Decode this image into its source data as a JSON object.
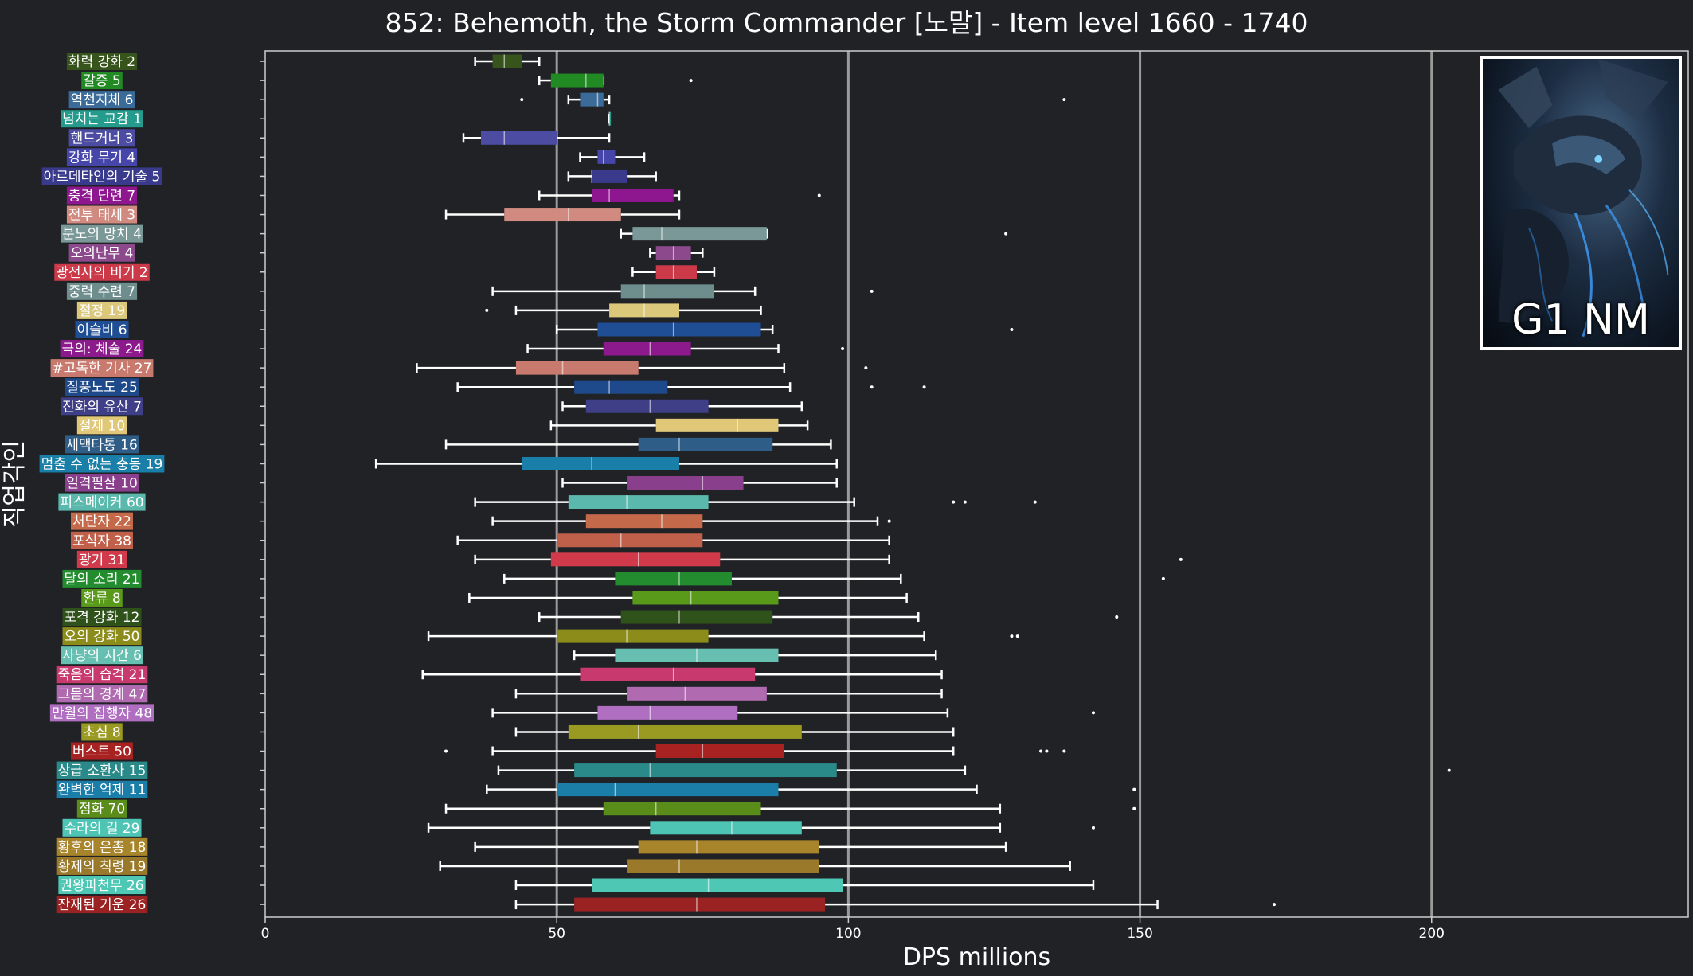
{
  "chart_data": {
    "type": "box",
    "title": "852: Behemoth, the Storm Commander [노말] - Item level 1660 - 1740",
    "xlabel": "DPS millions",
    "ylabel": "직업각인",
    "xlim": [
      0,
      244
    ],
    "xticks": [
      0,
      50,
      100,
      150,
      200
    ],
    "vlines": [
      50,
      100,
      150,
      200
    ],
    "badge": "G1 NM",
    "badge_image": "behemoth-dragon",
    "colors": {
      "background": "#202226",
      "axis": "#cccccc",
      "whisker": "#ffffff",
      "vline": "#9a9a9a"
    },
    "categories": [
      {
        "label": "화력 강화 2",
        "color": "#37541c",
        "stats": {
          "min": 36,
          "q1": 39,
          "median": 41,
          "q3": 44,
          "max": 47
        },
        "outliers": []
      },
      {
        "label": "갈증 5",
        "color": "#228a22",
        "stats": {
          "min": 47,
          "q1": 49,
          "median": 55,
          "q3": 58,
          "max": 58
        },
        "outliers": [
          73
        ]
      },
      {
        "label": "역천지체 6",
        "color": "#3a6b99",
        "stats": {
          "min": 52,
          "q1": 54,
          "median": 57,
          "q3": 58,
          "max": 59
        },
        "outliers": [
          44,
          137
        ]
      },
      {
        "label": "넘치는 교감 1",
        "color": "#249b8c",
        "stats": {
          "min": 59,
          "q1": 59,
          "median": 59,
          "q3": 59,
          "max": 59
        },
        "outliers": []
      },
      {
        "label": "핸드거너 3",
        "color": "#4c4ca2",
        "stats": {
          "min": 34,
          "q1": 37,
          "median": 41,
          "q3": 50,
          "max": 59
        },
        "outliers": []
      },
      {
        "label": "강화 무기 4",
        "color": "#4646aa",
        "stats": {
          "min": 54,
          "q1": 57,
          "median": 58,
          "q3": 60,
          "max": 65
        },
        "outliers": []
      },
      {
        "label": "아르데타인의 기술 5",
        "color": "#3a3a8c",
        "stats": {
          "min": 52,
          "q1": 56,
          "median": 56,
          "q3": 62,
          "max": 67
        },
        "outliers": []
      },
      {
        "label": "충격 단련 7",
        "color": "#8e168e",
        "stats": {
          "min": 47,
          "q1": 56,
          "median": 59,
          "q3": 70,
          "max": 71
        },
        "outliers": [
          95
        ]
      },
      {
        "label": "전투 태세 3",
        "color": "#d08a80",
        "stats": {
          "min": 31,
          "q1": 41,
          "median": 52,
          "q3": 61,
          "max": 71
        },
        "outliers": []
      },
      {
        "label": "분노의 망치 4",
        "color": "#7a9898",
        "stats": {
          "min": 61,
          "q1": 63,
          "median": 68,
          "q3": 86,
          "max": 86
        },
        "outliers": [
          127
        ]
      },
      {
        "label": "오의난무 4",
        "color": "#8c4a8c",
        "stats": {
          "min": 66,
          "q1": 67,
          "median": 70,
          "q3": 73,
          "max": 75
        },
        "outliers": []
      },
      {
        "label": "광전사의 비기 2",
        "color": "#cc3a4a",
        "stats": {
          "min": 63,
          "q1": 67,
          "median": 70,
          "q3": 74,
          "max": 77
        },
        "outliers": []
      },
      {
        "label": "중력 수련 7",
        "color": "#6e8e8e",
        "stats": {
          "min": 39,
          "q1": 61,
          "median": 65,
          "q3": 77,
          "max": 84
        },
        "outliers": [
          104
        ]
      },
      {
        "label": "절정 19",
        "color": "#dcc87a",
        "stats": {
          "min": 43,
          "q1": 59,
          "median": 65,
          "q3": 71,
          "max": 85
        },
        "outliers": [
          38
        ]
      },
      {
        "label": "이슬비 6",
        "color": "#1f4e94",
        "stats": {
          "min": 50,
          "q1": 57,
          "median": 70,
          "q3": 85,
          "max": 87
        },
        "outliers": [
          128
        ]
      },
      {
        "label": "극의: 체술 24",
        "color": "#8c1a8c",
        "stats": {
          "min": 45,
          "q1": 58,
          "median": 66,
          "q3": 73,
          "max": 88
        },
        "outliers": [
          99
        ]
      },
      {
        "label": "#고독한 기사 27",
        "color": "#c87a6e",
        "stats": {
          "min": 26,
          "q1": 43,
          "median": 51,
          "q3": 64,
          "max": 89
        },
        "outliers": [
          103
        ]
      },
      {
        "label": "질풍노도 25",
        "color": "#1e4a8c",
        "stats": {
          "min": 33,
          "q1": 53,
          "median": 59,
          "q3": 69,
          "max": 90
        },
        "outliers": [
          104,
          113
        ]
      },
      {
        "label": "진화의 유산 7",
        "color": "#3f3f88",
        "stats": {
          "min": 51,
          "q1": 55,
          "median": 66,
          "q3": 76,
          "max": 92
        },
        "outliers": []
      },
      {
        "label": "절제 10",
        "color": "#e0c878",
        "stats": {
          "min": 49,
          "q1": 67,
          "median": 81,
          "q3": 88,
          "max": 93
        },
        "outliers": []
      },
      {
        "label": "세맥타통 16",
        "color": "#2e5d88",
        "stats": {
          "min": 31,
          "q1": 64,
          "median": 71,
          "q3": 87,
          "max": 97
        },
        "outliers": []
      },
      {
        "label": "멈출 수 없는 충동 19",
        "color": "#1a7fa8",
        "stats": {
          "min": 19,
          "q1": 44,
          "median": 56,
          "q3": 71,
          "max": 98
        },
        "outliers": []
      },
      {
        "label": "일격필살 10",
        "color": "#8a3f8c",
        "stats": {
          "min": 51,
          "q1": 62,
          "median": 75,
          "q3": 82,
          "max": 98
        },
        "outliers": []
      },
      {
        "label": "피스메이커 60",
        "color": "#5ab8ac",
        "stats": {
          "min": 36,
          "q1": 52,
          "median": 62,
          "q3": 76,
          "max": 101
        },
        "outliers": [
          118,
          120,
          132
        ]
      },
      {
        "label": "처단자 22",
        "color": "#c46a4a",
        "stats": {
          "min": 39,
          "q1": 55,
          "median": 68,
          "q3": 75,
          "max": 105
        },
        "outliers": [
          107
        ]
      },
      {
        "label": "포식자 38",
        "color": "#c0604a",
        "stats": {
          "min": 33,
          "q1": 50,
          "median": 61,
          "q3": 75,
          "max": 107
        },
        "outliers": []
      },
      {
        "label": "광기 31",
        "color": "#d03a4a",
        "stats": {
          "min": 36,
          "q1": 49,
          "median": 64,
          "q3": 78,
          "max": 107
        },
        "outliers": [
          157
        ]
      },
      {
        "label": "달의 소리 21",
        "color": "#228c2e",
        "stats": {
          "min": 41,
          "q1": 60,
          "median": 71,
          "q3": 80,
          "max": 109
        },
        "outliers": [
          154
        ]
      },
      {
        "label": "환류 8",
        "color": "#5a9a1a",
        "stats": {
          "min": 35,
          "q1": 63,
          "median": 73,
          "q3": 88,
          "max": 110
        },
        "outliers": []
      },
      {
        "label": "포격 강화 12",
        "color": "#2f521b",
        "stats": {
          "min": 47,
          "q1": 61,
          "median": 71,
          "q3": 87,
          "max": 112
        },
        "outliers": [
          146
        ]
      },
      {
        "label": "오의 강화 50",
        "color": "#8c8c1a",
        "stats": {
          "min": 28,
          "q1": 50,
          "median": 62,
          "q3": 76,
          "max": 113
        },
        "outliers": [
          128,
          129
        ]
      },
      {
        "label": "사냥의 시간 6",
        "color": "#66bfb0",
        "stats": {
          "min": 53,
          "q1": 60,
          "median": 74,
          "q3": 88,
          "max": 115
        },
        "outliers": []
      },
      {
        "label": "죽음의 습격 21",
        "color": "#c83a6e",
        "stats": {
          "min": 27,
          "q1": 54,
          "median": 70,
          "q3": 84,
          "max": 116
        },
        "outliers": []
      },
      {
        "label": "그믐의 경계 47",
        "color": "#b06ab0",
        "stats": {
          "min": 43,
          "q1": 62,
          "median": 72,
          "q3": 86,
          "max": 116
        },
        "outliers": []
      },
      {
        "label": "만월의 집행자 48",
        "color": "#b06ec0",
        "stats": {
          "min": 39,
          "q1": 57,
          "median": 66,
          "q3": 81,
          "max": 117
        },
        "outliers": [
          142
        ]
      },
      {
        "label": "초심 8",
        "color": "#9a9a22",
        "stats": {
          "min": 43,
          "q1": 52,
          "median": 64,
          "q3": 92,
          "max": 118
        },
        "outliers": []
      },
      {
        "label": "버스트 50",
        "color": "#a82222",
        "stats": {
          "min": 39,
          "q1": 67,
          "median": 75,
          "q3": 89,
          "max": 118
        },
        "outliers": [
          31,
          133,
          134,
          137
        ]
      },
      {
        "label": "상급 소환사 15",
        "color": "#2a8a8a",
        "stats": {
          "min": 40,
          "q1": 53,
          "median": 66,
          "q3": 98,
          "max": 120
        },
        "outliers": [
          203
        ]
      },
      {
        "label": "완벽한 억제 11",
        "color": "#1a7ea8",
        "stats": {
          "min": 38,
          "q1": 50,
          "median": 60,
          "q3": 88,
          "max": 122
        },
        "outliers": [
          149
        ]
      },
      {
        "label": "점화 70",
        "color": "#5a8c1a",
        "stats": {
          "min": 31,
          "q1": 58,
          "median": 67,
          "q3": 85,
          "max": 126
        },
        "outliers": [
          149
        ]
      },
      {
        "label": "수라의 길 29",
        "color": "#4ec4b4",
        "stats": {
          "min": 28,
          "q1": 66,
          "median": 80,
          "q3": 92,
          "max": 126
        },
        "outliers": [
          142
        ]
      },
      {
        "label": "황후의 은총 18",
        "color": "#a8842a",
        "stats": {
          "min": 36,
          "q1": 64,
          "median": 74,
          "q3": 95,
          "max": 127
        },
        "outliers": []
      },
      {
        "label": "황제의 칙령 19",
        "color": "#9a7a2a",
        "stats": {
          "min": 30,
          "q1": 62,
          "median": 71,
          "q3": 95,
          "max": 138
        },
        "outliers": []
      },
      {
        "label": "권왕파천무 26",
        "color": "#4ec8b4",
        "stats": {
          "min": 43,
          "q1": 56,
          "median": 76,
          "q3": 99,
          "max": 142
        },
        "outliers": []
      },
      {
        "label": "잔재된 기운 26",
        "color": "#9a2222",
        "stats": {
          "min": 43,
          "q1": 53,
          "median": 74,
          "q3": 96,
          "max": 153
        },
        "outliers": [
          173
        ]
      }
    ]
  }
}
